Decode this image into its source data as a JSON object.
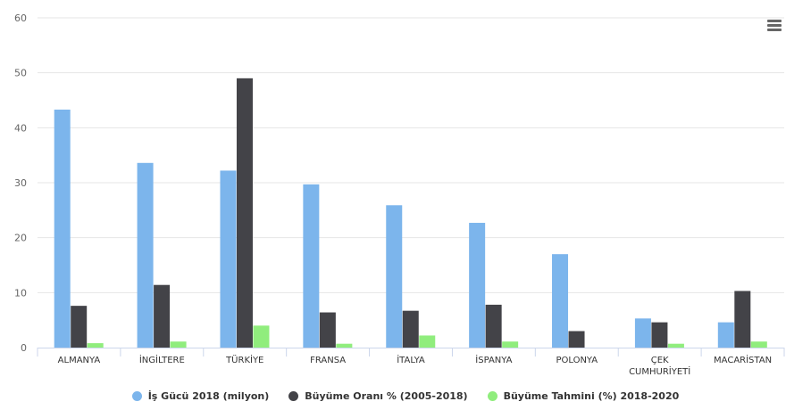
{
  "chart_data": {
    "type": "bar",
    "categories": [
      "ALMANYA",
      "İNGİLTERE",
      "TÜRKİYE",
      "FRANSA",
      "İTALYA",
      "İSPANYA",
      "POLONYA",
      "ÇEK CUMHURİYETİ",
      "MACARİSTAN"
    ],
    "series": [
      {
        "name": "İş Gücü 2018 (milyon)",
        "color": "#7cb5ec",
        "values": [
          43.3,
          33.6,
          32.2,
          29.7,
          25.9,
          22.7,
          17.0,
          5.3,
          4.6
        ]
      },
      {
        "name": "Büyüme Oranı % (2005-2018)",
        "color": "#434348",
        "values": [
          7.6,
          11.4,
          49.0,
          6.4,
          6.7,
          7.8,
          3.0,
          4.6,
          10.3
        ]
      },
      {
        "name": "Büyüme Tahmini (%) 2018-2020",
        "color": "#90ed7d",
        "values": [
          0.8,
          1.1,
          4.0,
          0.7,
          2.2,
          1.1,
          0.0,
          0.7,
          1.1
        ]
      }
    ],
    "ylim": [
      0,
      60
    ],
    "yticks": [
      0,
      10,
      20,
      30,
      40,
      50,
      60
    ],
    "grid": true,
    "legend": "bottom-center"
  },
  "menu": {
    "icon": "hamburger-menu-icon"
  }
}
